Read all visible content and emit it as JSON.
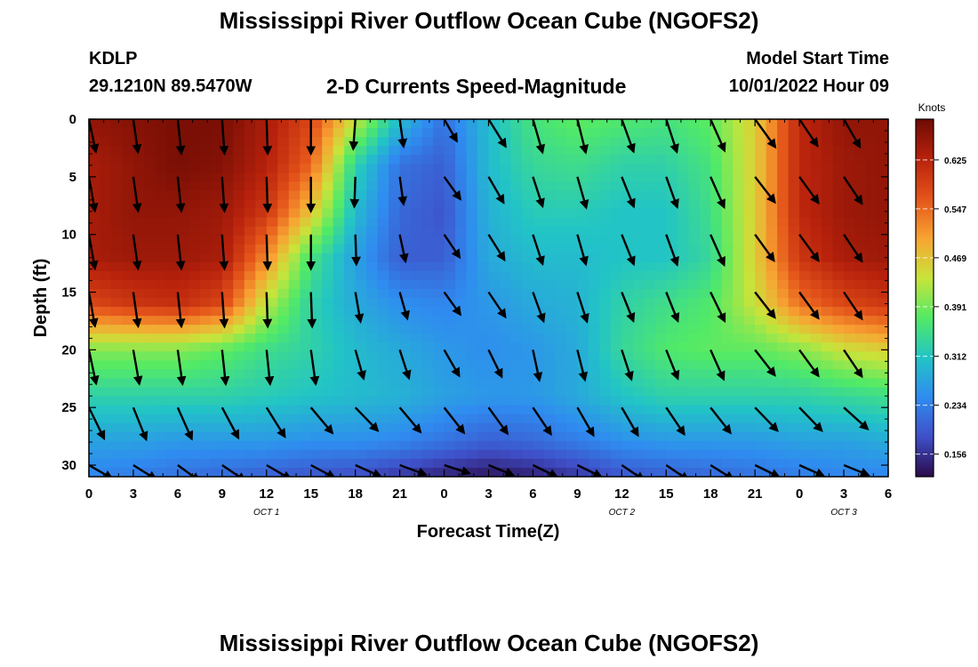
{
  "header": {
    "title": "Mississippi River Outflow Ocean Cube (NGOFS2)",
    "station": "KDLP",
    "coords": "29.1210N  89.5470W",
    "subtitle": "2-D Currents Speed-Magnitude",
    "start_label": "Model Start Time",
    "start_time": "10/01/2022 Hour 09"
  },
  "footer": {
    "title": "Mississippi River Outflow Ocean Cube (NGOFS2)"
  },
  "chart_data": {
    "type": "heatmap",
    "title": "2-D Currents Speed-Magnitude",
    "xlabel": "Forecast Time(Z)",
    "ylabel": "Depth (ft)",
    "x_range_hours": [
      0,
      54
    ],
    "y_range_ft": [
      0,
      31
    ],
    "y_inverted": true,
    "x_ticks": [
      "0",
      "3",
      "6",
      "9",
      "12",
      "15",
      "18",
      "21",
      "0",
      "3",
      "6",
      "9",
      "12",
      "15",
      "18",
      "21",
      "0",
      "3",
      "6"
    ],
    "y_ticks": [
      "0",
      "5",
      "10",
      "15",
      "20",
      "25",
      "30"
    ],
    "date_labels": [
      {
        "label": "OCT 1",
        "hour": 12
      },
      {
        "label": "OCT 2",
        "hour": 36
      },
      {
        "label": "OCT 3",
        "hour": 51
      }
    ],
    "colorbar": {
      "units": "Knots",
      "ticks": [
        0.156,
        0.234,
        0.312,
        0.391,
        0.469,
        0.547,
        0.625
      ],
      "tick_labels": [
        "0.156",
        "0.234",
        "0.312",
        "0.391",
        "0.469",
        "0.547",
        "0.625"
      ],
      "range": [
        0.12,
        0.69
      ],
      "colors": [
        "#2a0a4a",
        "#3f4fc8",
        "#2f8cf0",
        "#22c4c6",
        "#52ea66",
        "#c8e43a",
        "#f8a432",
        "#e4541a",
        "#b8220c",
        "#6e0b04"
      ]
    },
    "speed_grid_knots": {
      "hours": [
        0,
        3,
        6,
        9,
        12,
        15,
        18,
        21,
        24,
        27,
        30,
        33,
        36,
        39,
        42,
        45,
        48,
        51,
        54
      ],
      "depths_ft": [
        0,
        4,
        8,
        12,
        16,
        20,
        24,
        28,
        31
      ],
      "values": [
        [
          0.66,
          0.67,
          0.68,
          0.68,
          0.64,
          0.58,
          0.44,
          0.3,
          0.22,
          0.3,
          0.36,
          0.38,
          0.37,
          0.36,
          0.38,
          0.46,
          0.62,
          0.66,
          0.66
        ],
        [
          0.64,
          0.66,
          0.68,
          0.67,
          0.63,
          0.55,
          0.33,
          0.22,
          0.2,
          0.3,
          0.34,
          0.35,
          0.33,
          0.33,
          0.36,
          0.46,
          0.62,
          0.65,
          0.66
        ],
        [
          0.64,
          0.66,
          0.66,
          0.65,
          0.6,
          0.47,
          0.3,
          0.21,
          0.19,
          0.29,
          0.32,
          0.32,
          0.31,
          0.31,
          0.35,
          0.46,
          0.62,
          0.65,
          0.66
        ],
        [
          0.64,
          0.65,
          0.65,
          0.64,
          0.52,
          0.36,
          0.27,
          0.2,
          0.2,
          0.28,
          0.3,
          0.3,
          0.31,
          0.31,
          0.34,
          0.46,
          0.6,
          0.64,
          0.65
        ],
        [
          0.58,
          0.6,
          0.61,
          0.58,
          0.43,
          0.33,
          0.28,
          0.25,
          0.24,
          0.26,
          0.28,
          0.29,
          0.33,
          0.35,
          0.37,
          0.44,
          0.54,
          0.58,
          0.6
        ],
        [
          0.4,
          0.4,
          0.4,
          0.38,
          0.35,
          0.33,
          0.3,
          0.28,
          0.26,
          0.25,
          0.26,
          0.28,
          0.34,
          0.37,
          0.38,
          0.38,
          0.4,
          0.44,
          0.46
        ],
        [
          0.33,
          0.33,
          0.33,
          0.33,
          0.32,
          0.31,
          0.3,
          0.29,
          0.27,
          0.26,
          0.26,
          0.28,
          0.31,
          0.33,
          0.33,
          0.33,
          0.33,
          0.34,
          0.35
        ],
        [
          0.27,
          0.27,
          0.26,
          0.26,
          0.26,
          0.25,
          0.25,
          0.24,
          0.22,
          0.2,
          0.21,
          0.23,
          0.25,
          0.26,
          0.26,
          0.26,
          0.27,
          0.27,
          0.28
        ],
        [
          0.24,
          0.23,
          0.22,
          0.21,
          0.2,
          0.19,
          0.18,
          0.16,
          0.14,
          0.13,
          0.14,
          0.16,
          0.19,
          0.2,
          0.21,
          0.22,
          0.23,
          0.24,
          0.24
        ]
      ]
    },
    "vectors": {
      "hours": [
        0,
        3,
        6,
        9,
        12,
        15,
        18,
        21,
        24,
        27,
        30,
        33,
        36,
        39,
        42,
        45,
        48,
        51,
        54
      ],
      "depths_ft": [
        0,
        5,
        10,
        15,
        20,
        25,
        30
      ],
      "angles_deg_from_down": [
        [
          12,
          8,
          6,
          4,
          2,
          0,
          -4,
          8,
          30,
          32,
          16,
          14,
          20,
          18,
          24,
          36,
          34,
          30,
          26
        ],
        [
          10,
          8,
          6,
          4,
          2,
          0,
          -2,
          8,
          36,
          30,
          18,
          16,
          22,
          20,
          24,
          38,
          36,
          34,
          24
        ],
        [
          10,
          8,
          6,
          4,
          2,
          0,
          2,
          12,
          34,
          32,
          18,
          16,
          22,
          20,
          24,
          36,
          36,
          34,
          26
        ],
        [
          10,
          8,
          6,
          4,
          2,
          2,
          10,
          16,
          36,
          34,
          20,
          18,
          22,
          22,
          26,
          38,
          36,
          34,
          26
        ],
        [
          12,
          10,
          8,
          6,
          6,
          8,
          16,
          18,
          30,
          26,
          12,
          14,
          18,
          22,
          24,
          38,
          36,
          34,
          30
        ],
        [
          26,
          22,
          24,
          28,
          32,
          40,
          44,
          40,
          38,
          36,
          34,
          30,
          30,
          34,
          38,
          44,
          44,
          48,
          52
        ],
        [
          60,
          58,
          54,
          56,
          60,
          62,
          66,
          70,
          72,
          68,
          64,
          64,
          56,
          56,
          58,
          64,
          66,
          68,
          70
        ]
      ],
      "lengths_ft": [
        [
          2.9,
          2.9,
          3.0,
          3.0,
          3.0,
          3.0,
          2.6,
          2.4,
          2.2,
          2.8,
          3.0,
          3.0,
          3.0,
          3.0,
          3.0,
          3.0,
          2.8,
          2.8,
          2.8
        ],
        [
          3.0,
          3.0,
          3.0,
          3.0,
          3.0,
          3.0,
          2.6,
          2.4,
          2.4,
          2.6,
          2.7,
          2.8,
          2.8,
          2.8,
          2.9,
          2.8,
          2.8,
          2.8,
          2.8
        ],
        [
          3.0,
          3.0,
          3.0,
          3.0,
          3.0,
          3.0,
          2.6,
          2.4,
          2.4,
          2.6,
          2.7,
          2.7,
          2.8,
          2.8,
          2.9,
          2.8,
          2.8,
          2.8,
          2.8
        ],
        [
          3.0,
          3.0,
          3.0,
          3.0,
          3.0,
          3.0,
          2.6,
          2.4,
          2.4,
          2.6,
          2.7,
          2.7,
          2.7,
          2.7,
          2.8,
          2.8,
          2.8,
          2.8,
          2.8
        ],
        [
          3.0,
          3.0,
          3.0,
          3.0,
          3.0,
          3.0,
          2.6,
          2.6,
          2.6,
          2.6,
          2.7,
          2.7,
          2.7,
          2.7,
          2.8,
          2.8,
          2.8,
          2.8,
          2.8
        ],
        [
          3.0,
          3.0,
          3.0,
          3.0,
          3.0,
          2.9,
          2.8,
          2.8,
          2.8,
          2.8,
          2.8,
          2.8,
          2.8,
          2.8,
          2.8,
          2.8,
          2.8,
          2.8,
          2.8
        ],
        [
          2.3,
          2.3,
          2.3,
          2.4,
          2.4,
          2.3,
          2.4,
          2.4,
          2.3,
          2.3,
          2.3,
          2.3,
          2.3,
          2.3,
          2.3,
          2.3,
          2.3,
          2.3,
          2.3
        ]
      ]
    },
    "legend_placement": "right",
    "grid": false
  }
}
